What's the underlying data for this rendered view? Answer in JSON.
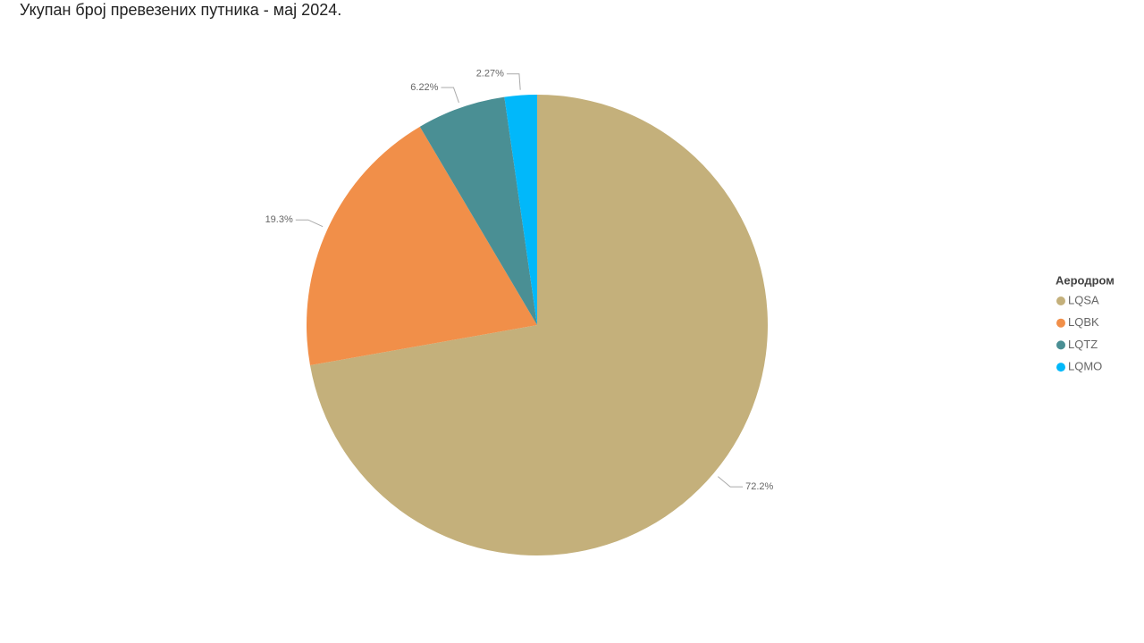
{
  "chart_data": {
    "type": "pie",
    "title": "Укупан број превезених путника - мај 2024.",
    "legend_title": "Аеродром",
    "legend_position": "right",
    "categories": [
      "LQSA",
      "LQBK",
      "LQTZ",
      "LQMO"
    ],
    "values": [
      72.2,
      19.3,
      6.22,
      2.27
    ],
    "value_labels": [
      "72.2%",
      "19.3%",
      "6.22%",
      "2.27%"
    ],
    "colors": [
      "#C4B07B",
      "#F18F49",
      "#4A8F94",
      "#01B8FA"
    ]
  }
}
